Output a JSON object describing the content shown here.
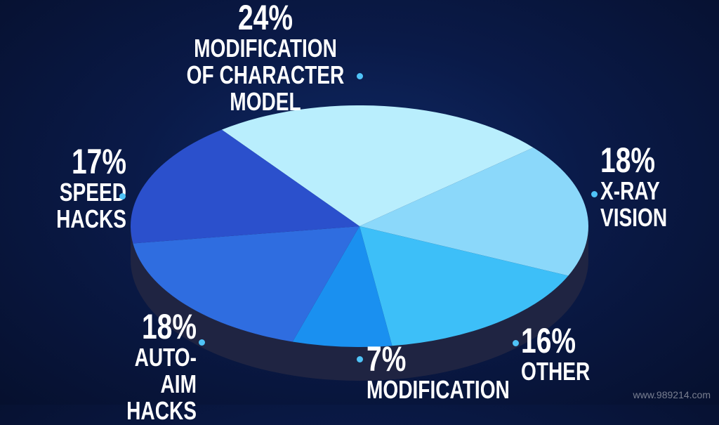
{
  "chart_data": {
    "type": "pie",
    "style": "3d",
    "slices": [
      {
        "label": "MODIFICATION OF CHARACTER MODEL",
        "value": 24,
        "pct_label": "24%",
        "color": "#b9eefd"
      },
      {
        "label": "X-RAY VISION",
        "value": 18,
        "pct_label": "18%",
        "color": "#8bd8fa"
      },
      {
        "label": "OTHER",
        "value": 16,
        "pct_label": "16%",
        "color": "#3dbff8"
      },
      {
        "label": "MODIFICATION",
        "value": 7,
        "pct_label": "7%",
        "color": "#1a90f0"
      },
      {
        "label": "AUTO-AIM HACKS",
        "value": 18,
        "pct_label": "18%",
        "color": "#2f6de0"
      },
      {
        "label": "SPEED HACKS",
        "value": 17,
        "pct_label": "17%",
        "color": "#2b50cc"
      }
    ],
    "side_color": "#1f2442",
    "dot_color": "#4fc3f7"
  },
  "watermark": "www.989214.com"
}
